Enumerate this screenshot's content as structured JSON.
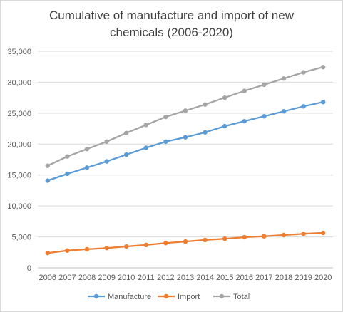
{
  "chart_data": {
    "type": "line",
    "title_line1": "Cumulative of manufacture and import of new",
    "title_line2": "chemicals (2006-2020)",
    "xlabel": "",
    "ylabel": "",
    "ylim": [
      0,
      35000
    ],
    "yticks": [
      0,
      5000,
      10000,
      15000,
      20000,
      25000,
      30000,
      35000
    ],
    "ytick_labels": [
      "0",
      "5,000",
      "10,000",
      "15,000",
      "20,000",
      "25,000",
      "30,000",
      "35,000"
    ],
    "categories": [
      "2006",
      "2007",
      "2008",
      "2009",
      "2010",
      "2011",
      "2012",
      "2013",
      "2014",
      "2015",
      "2016",
      "2017",
      "2018",
      "2019",
      "2020"
    ],
    "grid": "horizontal",
    "legend_position": "bottom",
    "series": [
      {
        "name": "Manufacture",
        "color": "#5b9bd5",
        "values": [
          14100,
          15200,
          16200,
          17200,
          18300,
          19400,
          20400,
          21100,
          21900,
          22900,
          23700,
          24500,
          25300,
          26100,
          26800
        ]
      },
      {
        "name": "Import",
        "color": "#ed7d31",
        "values": [
          2400,
          2800,
          3000,
          3200,
          3450,
          3700,
          4000,
          4250,
          4500,
          4700,
          4950,
          5100,
          5300,
          5500,
          5650
        ]
      },
      {
        "name": "Total",
        "color": "#a5a5a5",
        "values": [
          16500,
          18000,
          19200,
          20400,
          21800,
          23100,
          24400,
          25400,
          26400,
          27500,
          28600,
          29600,
          30600,
          31600,
          32450
        ]
      }
    ]
  }
}
